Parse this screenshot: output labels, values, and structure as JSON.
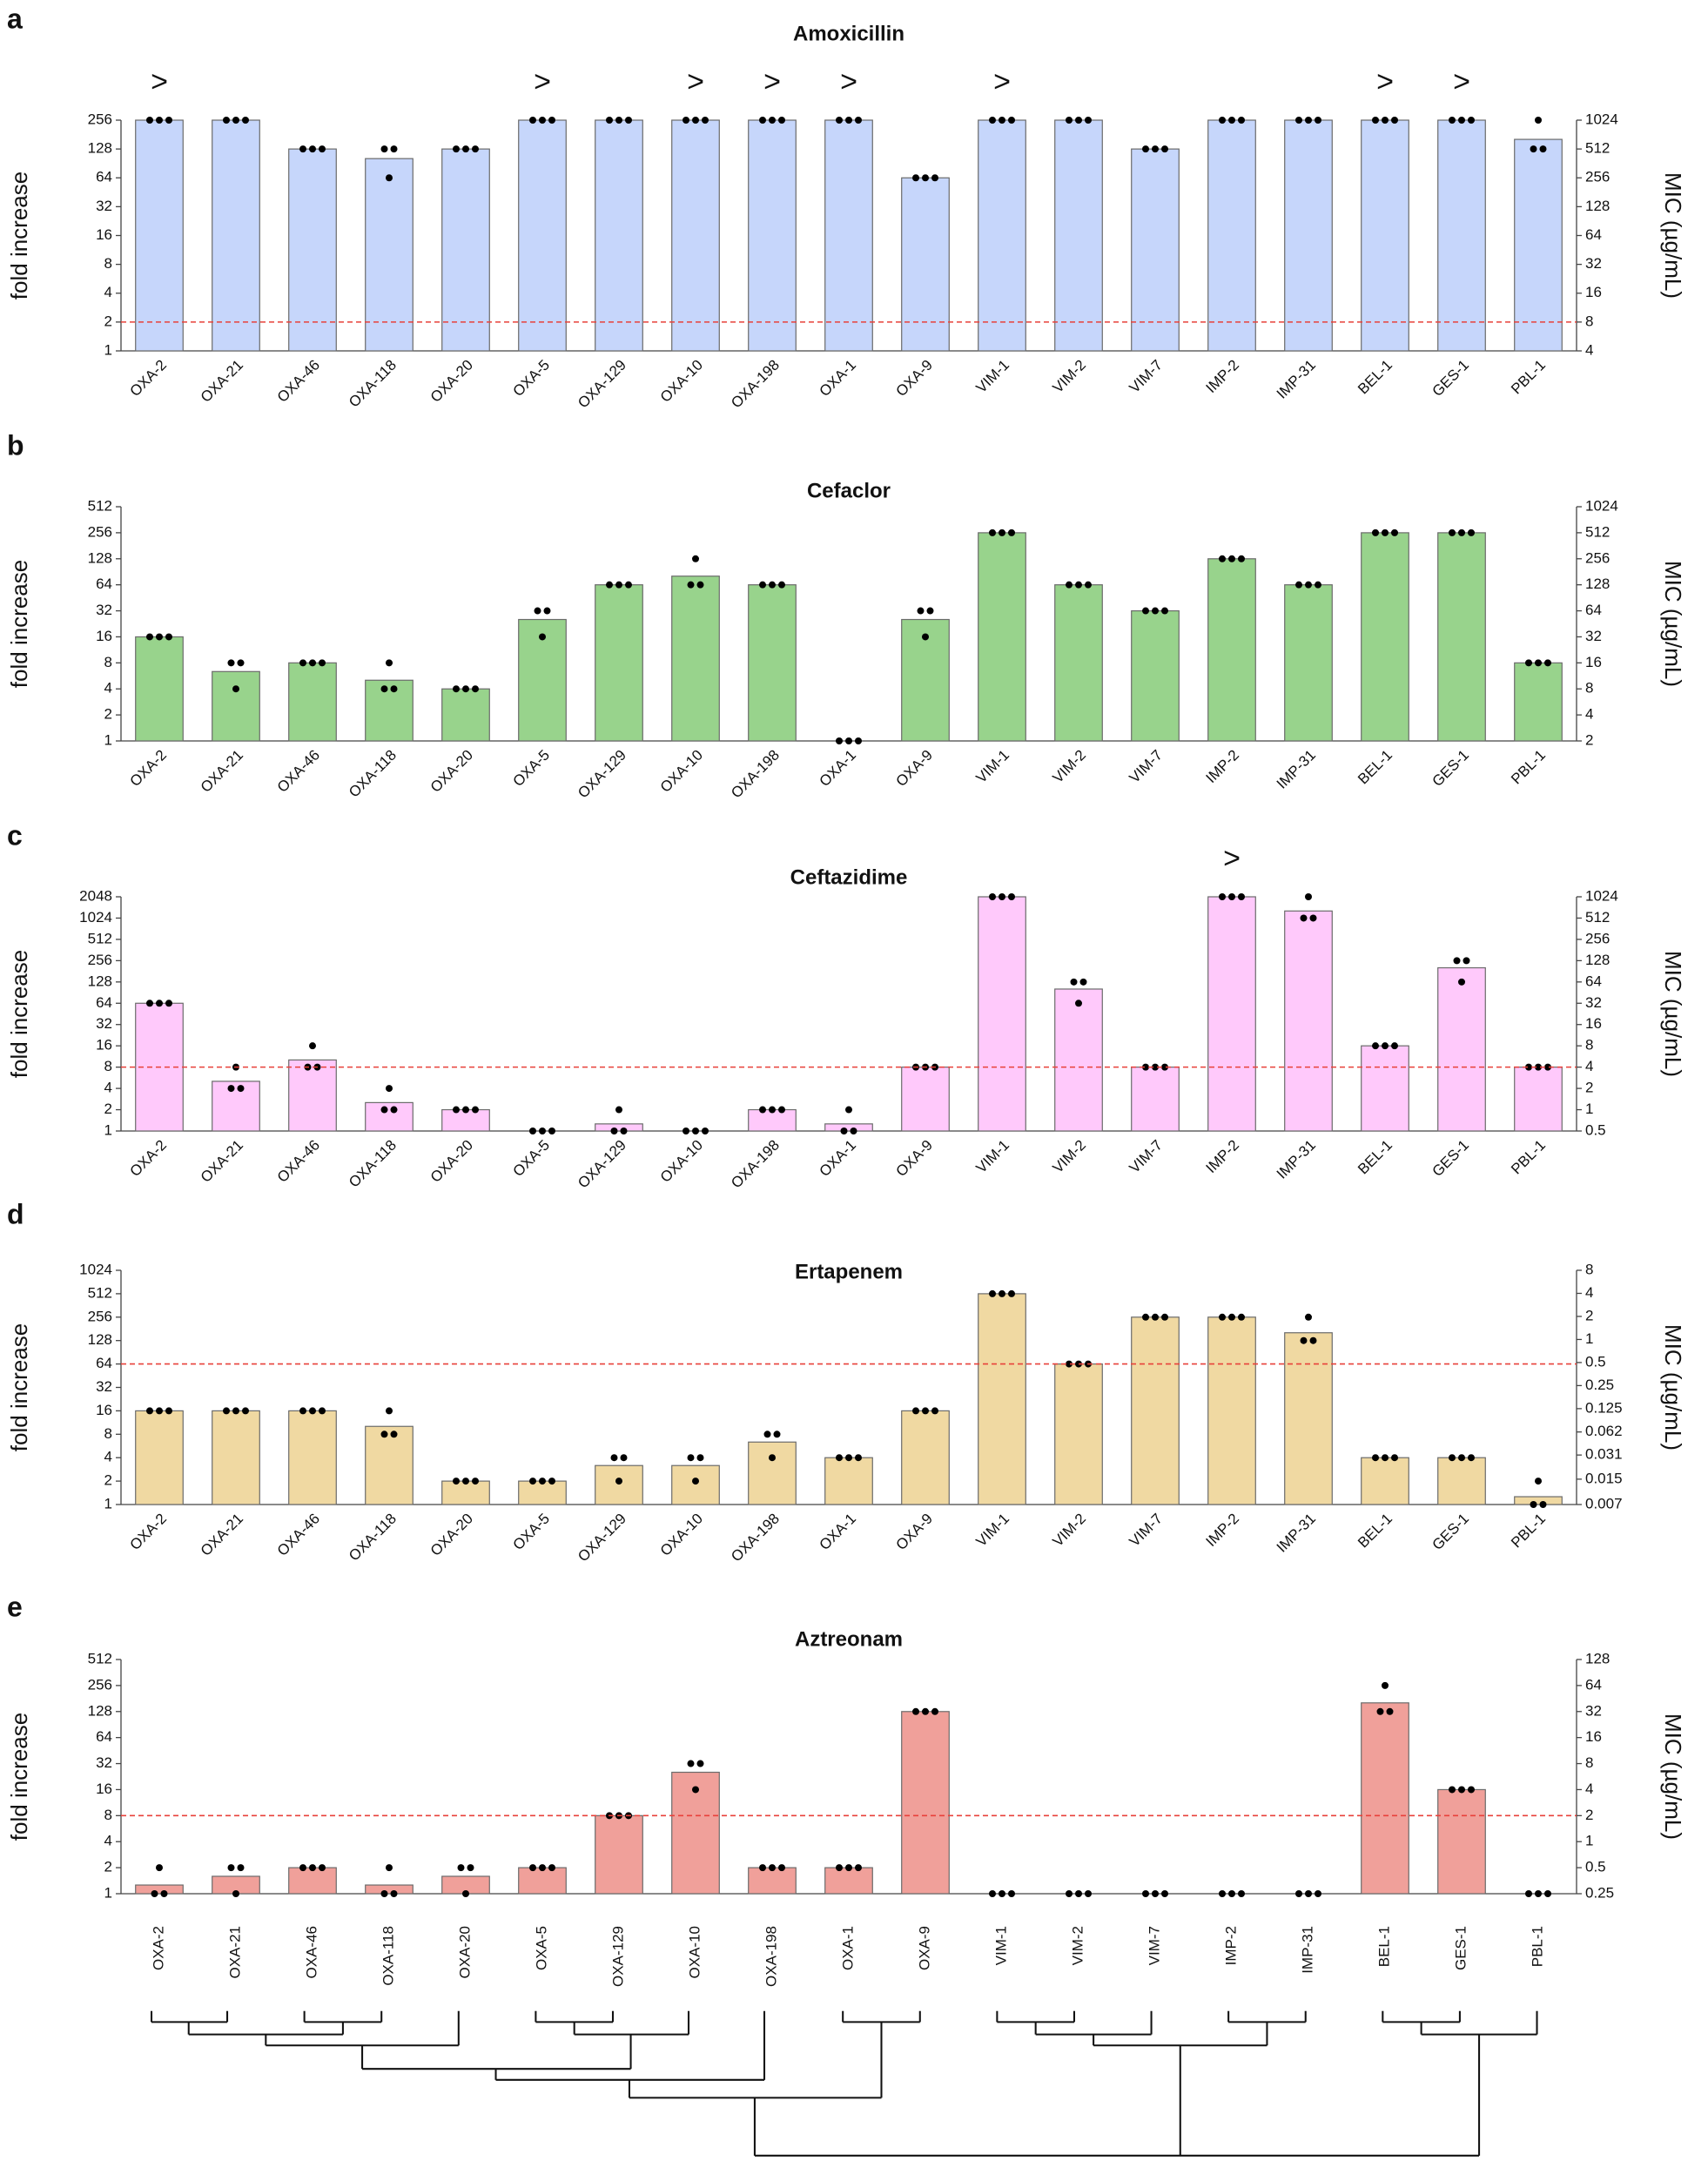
{
  "chart_data": [
    {
      "type": "bar",
      "panel": "a",
      "title": "Amoxicillin",
      "ylabel": "fold increase",
      "y2label": "MIC (µg/mL)",
      "categories": [
        "OXA-2",
        "OXA-21",
        "OXA-46",
        "OXA-118",
        "OXA-20",
        "OXA-5",
        "OXA-129",
        "OXA-10",
        "OXA-198",
        "OXA-1",
        "OXA-9",
        "VIM-1",
        "VIM-2",
        "VIM-7",
        "IMP-2",
        "IMP-31",
        "BEL-1",
        "GES-1",
        "PBL-1"
      ],
      "values": [
        256,
        256,
        128,
        101.6,
        128,
        256,
        256,
        256,
        256,
        256,
        64,
        256,
        256,
        128,
        256,
        256,
        256,
        256,
        161.3
      ],
      "replicates": [
        [
          256,
          256,
          256
        ],
        [
          256,
          256,
          256
        ],
        [
          128,
          128,
          128
        ],
        [
          128,
          128,
          64
        ],
        [
          128,
          128,
          128
        ],
        [
          256,
          256,
          256
        ],
        [
          256,
          256,
          256
        ],
        [
          256,
          256,
          256
        ],
        [
          256,
          256,
          256
        ],
        [
          256,
          256,
          256
        ],
        [
          64,
          64,
          64
        ],
        [
          256,
          256,
          256
        ],
        [
          256,
          256,
          256
        ],
        [
          128,
          128,
          128
        ],
        [
          256,
          256,
          256
        ],
        [
          256,
          256,
          256
        ],
        [
          256,
          256,
          256
        ],
        [
          256,
          256,
          256
        ],
        [
          256,
          128,
          128
        ]
      ],
      "color": "#c6d6fb",
      "ylog": true,
      "ylim": [
        1,
        256
      ],
      "yticks": [
        1,
        2,
        4,
        8,
        16,
        32,
        64,
        128,
        256
      ],
      "y2lim": [
        4,
        1024
      ],
      "y2ticks": [
        4,
        8,
        16,
        32,
        64,
        128,
        256,
        512,
        1024
      ],
      "reference_line": {
        "value": 2,
        "color": "#e8413a"
      },
      "annotations": [
        {
          "text": ">",
          "category": "OXA-2"
        },
        {
          "text": ">",
          "category": "OXA-5"
        },
        {
          "text": ">",
          "category": "OXA-10"
        },
        {
          "text": ">",
          "category": "OXA-198"
        },
        {
          "text": ">",
          "category": "OXA-1"
        },
        {
          "text": ">",
          "category": "VIM-1"
        },
        {
          "text": ">",
          "category": "BEL-1"
        },
        {
          "text": ">",
          "category": "GES-1"
        }
      ]
    },
    {
      "type": "bar",
      "panel": "b",
      "title": "Cefaclor",
      "ylabel": "fold increase",
      "y2label": "MIC (µg/mL)",
      "categories": [
        "OXA-2",
        "OXA-21",
        "OXA-46",
        "OXA-118",
        "OXA-20",
        "OXA-5",
        "OXA-129",
        "OXA-10",
        "OXA-198",
        "OXA-1",
        "OXA-9",
        "VIM-1",
        "VIM-2",
        "VIM-7",
        "IMP-2",
        "IMP-31",
        "BEL-1",
        "GES-1",
        "PBL-1"
      ],
      "values": [
        16,
        6.35,
        8,
        5.04,
        4,
        25.4,
        64,
        80.6,
        64,
        1,
        25.4,
        256,
        64,
        32,
        128,
        64,
        256,
        256,
        8
      ],
      "replicates": [
        [
          16,
          16,
          16
        ],
        [
          8,
          8,
          4
        ],
        [
          8,
          8,
          8
        ],
        [
          8,
          4,
          4
        ],
        [
          4,
          4,
          4
        ],
        [
          32,
          32,
          16
        ],
        [
          64,
          64,
          64
        ],
        [
          128,
          64,
          64
        ],
        [
          64,
          64,
          64
        ],
        [
          1,
          1,
          1
        ],
        [
          32,
          32,
          16
        ],
        [
          256,
          256,
          256
        ],
        [
          64,
          64,
          64
        ],
        [
          32,
          32,
          32
        ],
        [
          128,
          128,
          128
        ],
        [
          64,
          64,
          64
        ],
        [
          256,
          256,
          256
        ],
        [
          256,
          256,
          256
        ],
        [
          8,
          8,
          8
        ]
      ],
      "color": "#98d38c",
      "ylog": true,
      "ylim": [
        1,
        512
      ],
      "yticks": [
        1,
        2,
        4,
        8,
        16,
        32,
        64,
        128,
        256,
        512
      ],
      "y2lim": [
        2,
        1024
      ],
      "y2ticks": [
        2,
        4,
        8,
        16,
        32,
        64,
        128,
        256,
        512,
        1024
      ]
    },
    {
      "type": "bar",
      "panel": "c",
      "title": "Ceftazidime",
      "ylabel": "fold increase",
      "y2label": "MIC (µg/mL)",
      "categories": [
        "OXA-2",
        "OXA-21",
        "OXA-46",
        "OXA-118",
        "OXA-20",
        "OXA-5",
        "OXA-129",
        "OXA-10",
        "OXA-198",
        "OXA-1",
        "OXA-9",
        "VIM-1",
        "VIM-2",
        "VIM-7",
        "IMP-2",
        "IMP-31",
        "BEL-1",
        "GES-1",
        "PBL-1"
      ],
      "values": [
        64,
        5.04,
        10.1,
        2.52,
        2,
        1,
        1.26,
        1,
        2,
        1.26,
        8,
        2048,
        101.6,
        8,
        2048,
        1290,
        16,
        203,
        8
      ],
      "replicates": [
        [
          64,
          64,
          64
        ],
        [
          8,
          4,
          4
        ],
        [
          16,
          8,
          8
        ],
        [
          4,
          2,
          2
        ],
        [
          2,
          2,
          2
        ],
        [
          1,
          1,
          1
        ],
        [
          2,
          1,
          1
        ],
        [
          1,
          1,
          1
        ],
        [
          2,
          2,
          2
        ],
        [
          2,
          1,
          1
        ],
        [
          8,
          8,
          8
        ],
        [
          2048,
          2048,
          2048
        ],
        [
          128,
          128,
          64
        ],
        [
          8,
          8,
          8
        ],
        [
          2048,
          2048,
          2048
        ],
        [
          2048,
          1024,
          1024
        ],
        [
          16,
          16,
          16
        ],
        [
          256,
          256,
          128
        ],
        [
          8,
          8,
          8
        ]
      ],
      "color": "#ffc9fb",
      "ylog": true,
      "ylim": [
        1,
        2048
      ],
      "yticks": [
        1,
        2,
        4,
        8,
        16,
        32,
        64,
        128,
        256,
        512,
        1024,
        2048
      ],
      "y2lim": [
        0.5,
        1024
      ],
      "y2ticks": [
        0.5,
        1,
        2,
        4,
        8,
        16,
        32,
        64,
        128,
        256,
        512,
        1024
      ],
      "reference_line": {
        "value": 8,
        "color": "#e8413a"
      },
      "annotations": [
        {
          "text": ">",
          "category": "IMP-2"
        }
      ]
    },
    {
      "type": "bar",
      "panel": "d",
      "title": "Ertapenem",
      "ylabel": "fold increase",
      "y2label": "MIC (µg/mL)",
      "categories": [
        "OXA-2",
        "OXA-21",
        "OXA-46",
        "OXA-118",
        "OXA-20",
        "OXA-5",
        "OXA-129",
        "OXA-10",
        "OXA-198",
        "OXA-1",
        "OXA-9",
        "VIM-1",
        "VIM-2",
        "VIM-7",
        "IMP-2",
        "IMP-31",
        "BEL-1",
        "GES-1",
        "PBL-1"
      ],
      "values": [
        16,
        16,
        16,
        10.1,
        2,
        2,
        3.17,
        3.17,
        6.35,
        4,
        16,
        512,
        64,
        256,
        256,
        161.3,
        4,
        4,
        1.26
      ],
      "replicates": [
        [
          16,
          16,
          16
        ],
        [
          16,
          16,
          16
        ],
        [
          16,
          16,
          16
        ],
        [
          16,
          8,
          8
        ],
        [
          2,
          2,
          2
        ],
        [
          2,
          2,
          2
        ],
        [
          4,
          4,
          2
        ],
        [
          4,
          4,
          2
        ],
        [
          8,
          8,
          4
        ],
        [
          4,
          4,
          4
        ],
        [
          16,
          16,
          16
        ],
        [
          512,
          512,
          512
        ],
        [
          64,
          64,
          64
        ],
        [
          256,
          256,
          256
        ],
        [
          256,
          256,
          256
        ],
        [
          256,
          128,
          128
        ],
        [
          4,
          4,
          4
        ],
        [
          4,
          4,
          4
        ],
        [
          2,
          1,
          1
        ]
      ],
      "color": "#f0d9a2",
      "ylog": true,
      "ylim": [
        1,
        1024
      ],
      "yticks": [
        1,
        2,
        4,
        8,
        16,
        32,
        64,
        128,
        256,
        512,
        1024
      ],
      "y2lim": [
        0.007,
        8
      ],
      "y2ticks": [
        0.007,
        0.015,
        0.031,
        0.062,
        0.125,
        0.25,
        0.5,
        1,
        2,
        4,
        8
      ],
      "reference_line": {
        "value": 64,
        "color": "#e8413a"
      }
    },
    {
      "type": "bar",
      "panel": "e",
      "title": "Aztreonam",
      "ylabel": "fold increase",
      "y2label": "MIC (µg/mL)",
      "categories": [
        "OXA-2",
        "OXA-21",
        "OXA-46",
        "OXA-118",
        "OXA-20",
        "OXA-5",
        "OXA-129",
        "OXA-10",
        "OXA-198",
        "OXA-1",
        "OXA-9",
        "VIM-1",
        "VIM-2",
        "VIM-7",
        "IMP-2",
        "IMP-31",
        "BEL-1",
        "GES-1",
        "PBL-1"
      ],
      "values": [
        1.26,
        1.59,
        2,
        1.26,
        1.59,
        2,
        8,
        25.4,
        2,
        2,
        128,
        1,
        1,
        1,
        1,
        1,
        161.3,
        16,
        1
      ],
      "replicates": [
        [
          2,
          1,
          1
        ],
        [
          2,
          2,
          1
        ],
        [
          2,
          2,
          2
        ],
        [
          2,
          1,
          1
        ],
        [
          2,
          2,
          1
        ],
        [
          2,
          2,
          2
        ],
        [
          8,
          8,
          8
        ],
        [
          32,
          32,
          16
        ],
        [
          2,
          2,
          2
        ],
        [
          2,
          2,
          2
        ],
        [
          128,
          128,
          128
        ],
        [
          1,
          1,
          1
        ],
        [
          1,
          1,
          1
        ],
        [
          1,
          1,
          1
        ],
        [
          1,
          1,
          1
        ],
        [
          1,
          1,
          1
        ],
        [
          256,
          128,
          128
        ],
        [
          16,
          16,
          16
        ],
        [
          1,
          1,
          1
        ]
      ],
      "color": "#f0a09a",
      "ylog": true,
      "ylim": [
        1,
        512
      ],
      "yticks": [
        1,
        2,
        4,
        8,
        16,
        32,
        64,
        128,
        256,
        512
      ],
      "y2lim": [
        0.25,
        128
      ],
      "y2ticks": [
        0.25,
        0.5,
        1,
        2,
        4,
        8,
        16,
        32,
        64,
        128
      ],
      "reference_line": {
        "value": 8,
        "color": "#e8413a"
      }
    }
  ]
}
